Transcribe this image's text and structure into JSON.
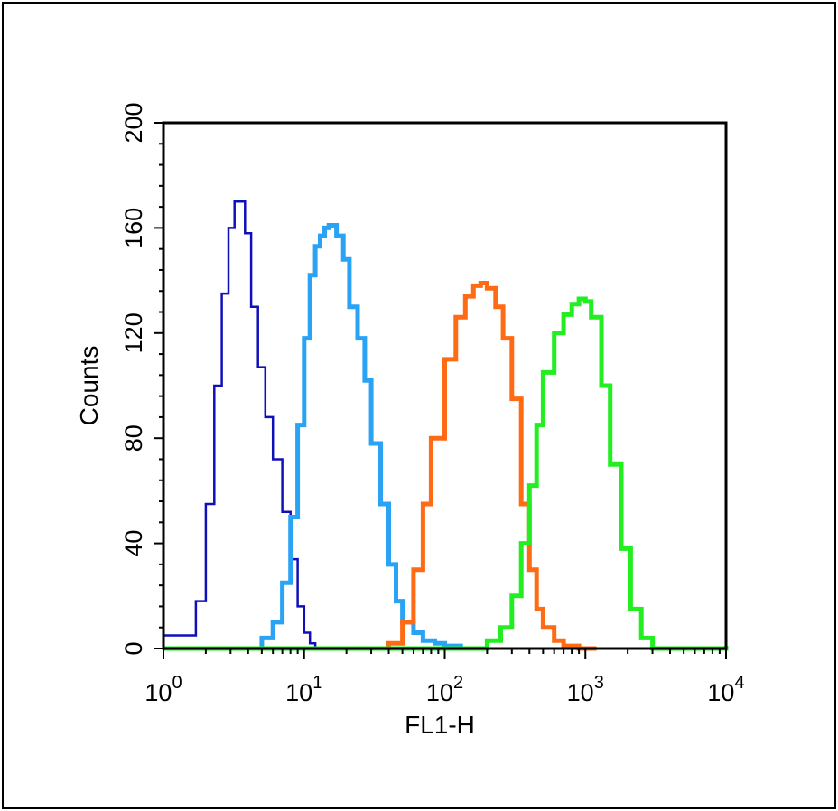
{
  "chart_data": {
    "type": "line",
    "title": "",
    "xlabel": "FL1-H",
    "ylabel": "Counts",
    "x_scale": "log",
    "xlim": [
      1,
      10000
    ],
    "ylim": [
      0,
      200
    ],
    "x_ticks": [
      {
        "value": 1,
        "base": "10",
        "exp": "0"
      },
      {
        "value": 10,
        "base": "10",
        "exp": "1"
      },
      {
        "value": 100,
        "base": "10",
        "exp": "2"
      },
      {
        "value": 1000,
        "base": "10",
        "exp": "3"
      },
      {
        "value": 10000,
        "base": "10",
        "exp": "4"
      }
    ],
    "y_ticks": [
      "0",
      "40",
      "80",
      "120",
      "160",
      "200"
    ],
    "grid": false,
    "legend": "none",
    "series": [
      {
        "color": "#1010b8",
        "stroke": "thin",
        "x": [
          1.0,
          1.4,
          1.7,
          2.0,
          2.3,
          2.6,
          2.9,
          3.2,
          3.5,
          3.8,
          4.2,
          4.7,
          5.3,
          6.0,
          7.0,
          8.0,
          9.0,
          10.0,
          11.0,
          12.0,
          13.0
        ],
        "y": [
          5,
          5,
          18,
          55,
          100,
          135,
          160,
          170,
          170,
          158,
          130,
          107,
          88,
          72,
          52,
          34,
          16,
          6,
          2,
          0,
          0
        ]
      },
      {
        "color": "#2ba3f5",
        "stroke": "thick",
        "x": [
          4.0,
          5.0,
          6.0,
          7.0,
          8.0,
          9.0,
          10.0,
          11.0,
          12.0,
          13.0,
          14.0,
          15.0,
          17.0,
          19.0,
          21.0,
          24.0,
          27.0,
          30.0,
          35.0,
          40.0,
          45.0,
          50.0,
          60.0,
          70.0,
          85.0,
          100.0,
          130.0,
          160.0
        ],
        "y": [
          0,
          4,
          10,
          25,
          50,
          85,
          118,
          142,
          153,
          157,
          160,
          161,
          157,
          148,
          130,
          118,
          102,
          78,
          55,
          32,
          18,
          10,
          6,
          3,
          2,
          1,
          0,
          0
        ]
      },
      {
        "color": "#ff6a14",
        "stroke": "thick",
        "x": [
          30.0,
          40.0,
          50.0,
          60.0,
          70.0,
          80.0,
          100.0,
          120.0,
          140.0,
          160.0,
          180.0,
          200.0,
          230.0,
          260.0,
          300.0,
          350.0,
          400.0,
          450.0,
          500.0,
          600.0,
          700.0,
          900.0,
          1200.0
        ],
        "y": [
          0,
          2,
          10,
          30,
          55,
          80,
          110,
          126,
          134,
          138,
          139,
          137,
          130,
          118,
          95,
          55,
          30,
          15,
          8,
          3,
          1,
          0,
          0
        ]
      },
      {
        "color": "#22ee22",
        "stroke": "thick",
        "x": [
          1.0,
          100.0,
          200.0,
          250.0,
          300.0,
          350.0,
          400.0,
          450.0,
          500.0,
          600.0,
          700.0,
          800.0,
          900.0,
          1000.0,
          1100.0,
          1300.0,
          1500.0,
          1800.0,
          2100.0,
          2500.0,
          3000.0,
          5000.0,
          10000.0
        ],
        "y": [
          0,
          0,
          3,
          8,
          20,
          40,
          62,
          85,
          105,
          120,
          127,
          131,
          133,
          132,
          126,
          100,
          70,
          38,
          15,
          4,
          0,
          0,
          1
        ]
      }
    ]
  }
}
